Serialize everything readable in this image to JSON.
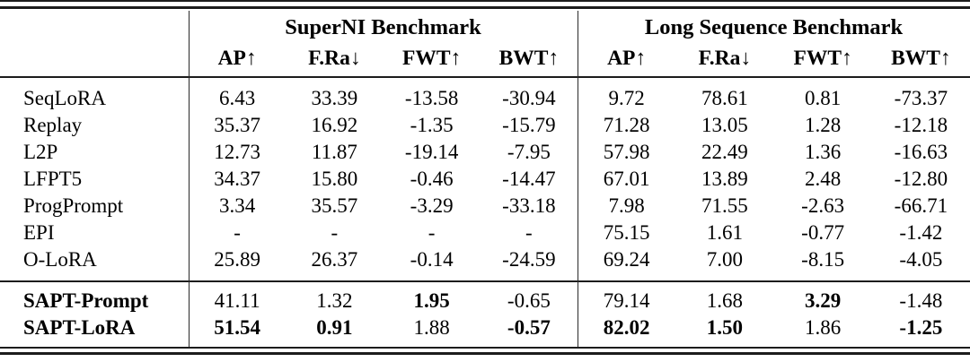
{
  "table": {
    "header": {
      "groups": [
        {
          "title": "SuperNI Benchmark",
          "columns": [
            "AP↑",
            "F.Ra↓",
            "FWT↑",
            "BWT↑"
          ]
        },
        {
          "title": "Long Sequence Benchmark",
          "columns": [
            "AP↑",
            "F.Ra↓",
            "FWT↑",
            "BWT↑"
          ]
        }
      ]
    },
    "body_rows": [
      {
        "label": "SeqLoRA",
        "label_bold": false,
        "values": [
          "6.43",
          "33.39",
          "-13.58",
          "-30.94",
          "9.72",
          "78.61",
          "0.81",
          "-73.37"
        ],
        "bold": [
          false,
          false,
          false,
          false,
          false,
          false,
          false,
          false
        ]
      },
      {
        "label": "Replay",
        "label_bold": false,
        "values": [
          "35.37",
          "16.92",
          "-1.35",
          "-15.79",
          "71.28",
          "13.05",
          "1.28",
          "-12.18"
        ],
        "bold": [
          false,
          false,
          false,
          false,
          false,
          false,
          false,
          false
        ]
      },
      {
        "label": "L2P",
        "label_bold": false,
        "values": [
          "12.73",
          "11.87",
          "-19.14",
          "-7.95",
          "57.98",
          "22.49",
          "1.36",
          "-16.63"
        ],
        "bold": [
          false,
          false,
          false,
          false,
          false,
          false,
          false,
          false
        ]
      },
      {
        "label": "LFPT5",
        "label_bold": false,
        "values": [
          "34.37",
          "15.80",
          "-0.46",
          "-14.47",
          "67.01",
          "13.89",
          "2.48",
          "-12.80"
        ],
        "bold": [
          false,
          false,
          false,
          false,
          false,
          false,
          false,
          false
        ]
      },
      {
        "label": "ProgPrompt",
        "label_bold": false,
        "values": [
          "3.34",
          "35.57",
          "-3.29",
          "-33.18",
          "7.98",
          "71.55",
          "-2.63",
          "-66.71"
        ],
        "bold": [
          false,
          false,
          false,
          false,
          false,
          false,
          false,
          false
        ]
      },
      {
        "label": "EPI",
        "label_bold": false,
        "values": [
          "-",
          "-",
          "-",
          "-",
          "75.15",
          "1.61",
          "-0.77",
          "-1.42"
        ],
        "bold": [
          false,
          false,
          false,
          false,
          false,
          false,
          false,
          false
        ]
      },
      {
        "label": "O-LoRA",
        "label_bold": false,
        "values": [
          "25.89",
          "26.37",
          "-0.14",
          "-24.59",
          "69.24",
          "7.00",
          "-8.15",
          "-4.05"
        ],
        "bold": [
          false,
          false,
          false,
          false,
          false,
          false,
          false,
          false
        ]
      }
    ],
    "highlight_rows": [
      {
        "label": "SAPT-Prompt",
        "label_bold": true,
        "values": [
          "41.11",
          "1.32",
          "1.95",
          "-0.65",
          "79.14",
          "1.68",
          "3.29",
          "-1.48"
        ],
        "bold": [
          false,
          false,
          true,
          false,
          false,
          false,
          true,
          false
        ]
      },
      {
        "label": "SAPT-LoRA",
        "label_bold": true,
        "values": [
          "51.54",
          "0.91",
          "1.88",
          "-0.57",
          "82.02",
          "1.50",
          "1.86",
          "-1.25"
        ],
        "bold": [
          true,
          true,
          false,
          true,
          true,
          true,
          false,
          true
        ]
      }
    ]
  }
}
